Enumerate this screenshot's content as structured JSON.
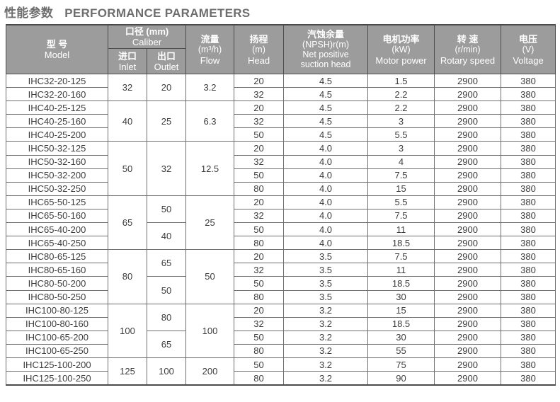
{
  "page": {
    "title_zh": "性能参数",
    "title_en": "PERFORMANCE PARAMETERS"
  },
  "colors": {
    "header_bg": "#9c9c9c",
    "header_text": "#ffffff",
    "body_text": "#3c3c3c",
    "border": "#6f6f6f",
    "title_text": "#6e6e6e"
  },
  "table": {
    "headers": {
      "model": {
        "zh": "型 号",
        "en": "Model"
      },
      "caliber": {
        "zh": "口径 (mm)",
        "en": "Caliber"
      },
      "inlet": {
        "zh": "进口",
        "en": "Inlet"
      },
      "outlet": {
        "zh": "出口",
        "en": "Outlet"
      },
      "flow": {
        "zh": "流量",
        "unit": "(m³/h)",
        "en": "Flow"
      },
      "head": {
        "zh": "扬程",
        "unit": "(m)",
        "en": "Head"
      },
      "npsh": {
        "zh": "汽蚀余量",
        "unit": "(NPSH)r(m)",
        "en1": "Net positive",
        "en2": "suction head"
      },
      "motor": {
        "zh": "电机功率",
        "unit": "(kW)",
        "en": "Motor power"
      },
      "speed": {
        "zh": "转 速",
        "unit": "(r/min)",
        "en": "Rotary speed"
      },
      "voltage": {
        "zh": "电压",
        "unit": "(V)",
        "en": "Voltage"
      }
    },
    "groups": [
      {
        "inlet": "32",
        "flow": "3.2",
        "outlets": [
          {
            "value": "20",
            "rows": 2
          }
        ],
        "rows": [
          {
            "model": "IHC32-20-125",
            "head": "20",
            "npsh": "4.5",
            "power": "1.5",
            "speed": "2900",
            "voltage": "380"
          },
          {
            "model": "IHC32-20-160",
            "head": "32",
            "npsh": "4.5",
            "power": "2.2",
            "speed": "2900",
            "voltage": "380"
          }
        ]
      },
      {
        "inlet": "40",
        "flow": "6.3",
        "outlets": [
          {
            "value": "25",
            "rows": 3
          }
        ],
        "rows": [
          {
            "model": "IHC40-25-125",
            "head": "20",
            "npsh": "4.5",
            "power": "2.2",
            "speed": "2900",
            "voltage": "380"
          },
          {
            "model": "IHC40-25-160",
            "head": "32",
            "npsh": "4.5",
            "power": "3",
            "speed": "2900",
            "voltage": "380"
          },
          {
            "model": "IHC40-25-200",
            "head": "50",
            "npsh": "4.5",
            "power": "5.5",
            "speed": "2900",
            "voltage": "380"
          }
        ]
      },
      {
        "inlet": "50",
        "flow": "12.5",
        "outlets": [
          {
            "value": "32",
            "rows": 4
          }
        ],
        "rows": [
          {
            "model": "IHC50-32-125",
            "head": "20",
            "npsh": "4.0",
            "power": "3",
            "speed": "2900",
            "voltage": "380"
          },
          {
            "model": "IHC50-32-160",
            "head": "32",
            "npsh": "4.0",
            "power": "4",
            "speed": "2900",
            "voltage": "380"
          },
          {
            "model": "IHC50-32-200",
            "head": "50",
            "npsh": "4.0",
            "power": "7.5",
            "speed": "2900",
            "voltage": "380"
          },
          {
            "model": "IHC50-32-250",
            "head": "80",
            "npsh": "4.0",
            "power": "15",
            "speed": "2900",
            "voltage": "380"
          }
        ]
      },
      {
        "inlet": "65",
        "flow": "25",
        "outlets": [
          {
            "value": "50",
            "rows": 2
          },
          {
            "value": "40",
            "rows": 2
          }
        ],
        "rows": [
          {
            "model": "IHC65-50-125",
            "head": "20",
            "npsh": "4.0",
            "power": "5.5",
            "speed": "2900",
            "voltage": "380"
          },
          {
            "model": "IHC65-50-160",
            "head": "32",
            "npsh": "4.0",
            "power": "7.5",
            "speed": "2900",
            "voltage": "380"
          },
          {
            "model": "IHC65-40-200",
            "head": "50",
            "npsh": "4.0",
            "power": "11",
            "speed": "2900",
            "voltage": "380"
          },
          {
            "model": "IHC65-40-250",
            "head": "80",
            "npsh": "4.0",
            "power": "18.5",
            "speed": "2900",
            "voltage": "380"
          }
        ]
      },
      {
        "inlet": "80",
        "flow": "50",
        "outlets": [
          {
            "value": "65",
            "rows": 2
          },
          {
            "value": "50",
            "rows": 2
          }
        ],
        "rows": [
          {
            "model": "IHC80-65-125",
            "head": "20",
            "npsh": "3.5",
            "power": "7.5",
            "speed": "2900",
            "voltage": "380"
          },
          {
            "model": "IHC80-65-160",
            "head": "32",
            "npsh": "3.5",
            "power": "11",
            "speed": "2900",
            "voltage": "380"
          },
          {
            "model": "IHC80-50-200",
            "head": "50",
            "npsh": "3.5",
            "power": "18.5",
            "speed": "2900",
            "voltage": "380"
          },
          {
            "model": "IHC80-50-250",
            "head": "80",
            "npsh": "3.5",
            "power": "30",
            "speed": "2900",
            "voltage": "380"
          }
        ]
      },
      {
        "inlet": "100",
        "flow": "100",
        "outlets": [
          {
            "value": "80",
            "rows": 2
          },
          {
            "value": "65",
            "rows": 2
          }
        ],
        "rows": [
          {
            "model": "IHC100-80-125",
            "head": "20",
            "npsh": "3.2",
            "power": "15",
            "speed": "2900",
            "voltage": "380"
          },
          {
            "model": "IHC100-80-160",
            "head": "32",
            "npsh": "3.2",
            "power": "18.5",
            "speed": "2900",
            "voltage": "380"
          },
          {
            "model": "IHC100-65-200",
            "head": "50",
            "npsh": "3.2",
            "power": "30",
            "speed": "2900",
            "voltage": "380"
          },
          {
            "model": "IHC100-65-250",
            "head": "80",
            "npsh": "3.2",
            "power": "55",
            "speed": "2900",
            "voltage": "380"
          }
        ]
      },
      {
        "inlet": "125",
        "flow": "200",
        "outlets": [
          {
            "value": "100",
            "rows": 2
          }
        ],
        "rows": [
          {
            "model": "IHC125-100-200",
            "head": "50",
            "npsh": "3.2",
            "power": "75",
            "speed": "2900",
            "voltage": "380"
          },
          {
            "model": "IHC125-100-250",
            "head": "80",
            "npsh": "3.2",
            "power": "90",
            "speed": "2900",
            "voltage": "380"
          }
        ]
      }
    ]
  }
}
